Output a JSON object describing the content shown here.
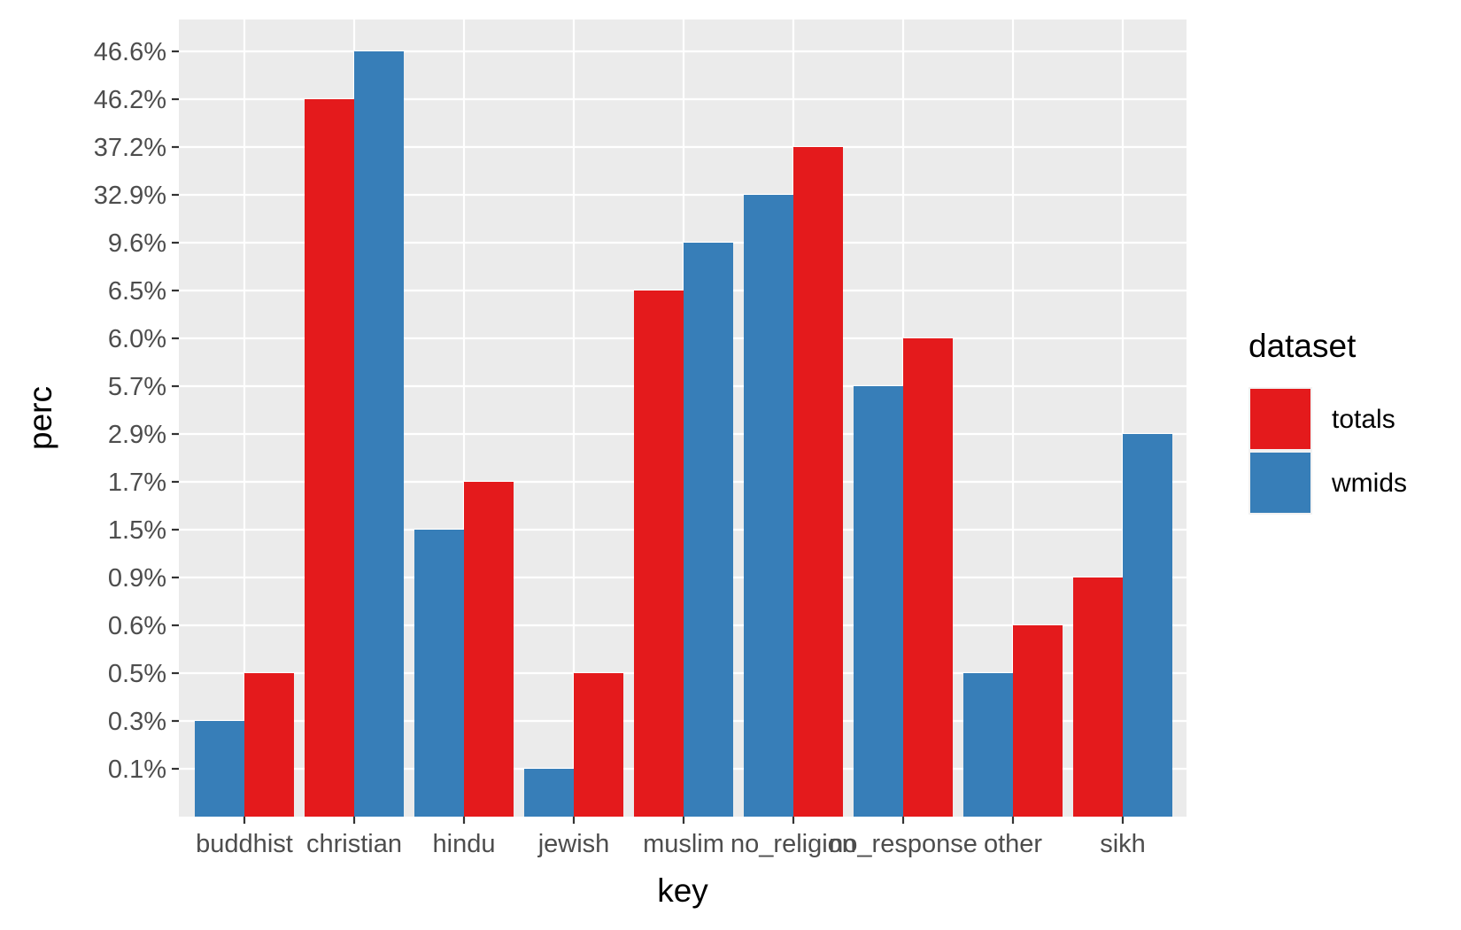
{
  "chart_data": {
    "type": "bar",
    "xlabel": "key",
    "ylabel": "perc",
    "categories": [
      "buddhist",
      "christian",
      "hindu",
      "jewish",
      "muslim",
      "no_religion",
      "no_response",
      "other",
      "sikh"
    ],
    "y_ticks": [
      "0.1%",
      "0.3%",
      "0.5%",
      "0.6%",
      "0.9%",
      "1.5%",
      "1.7%",
      "2.9%",
      "5.7%",
      "6.0%",
      "6.5%",
      "9.6%",
      "32.9%",
      "37.2%",
      "46.2%",
      "46.6%"
    ],
    "y_scale": "discrete",
    "grid": true,
    "legend": {
      "title": "dataset",
      "position": "right",
      "entries": [
        "totals",
        "wmids"
      ]
    },
    "series": [
      {
        "name": "totals",
        "color": "#E41A1C",
        "values": [
          "0.5%",
          "46.2%",
          "1.7%",
          "0.5%",
          "6.5%",
          "37.2%",
          "6.0%",
          "0.6%",
          "0.9%"
        ]
      },
      {
        "name": "wmids",
        "color": "#377EB8",
        "values": [
          "0.3%",
          "46.6%",
          "1.5%",
          "0.1%",
          "9.6%",
          "32.9%",
          "5.7%",
          "0.5%",
          "2.9%"
        ]
      }
    ],
    "panel_color": "#EBEBEB",
    "grid_color": "#FFFFFF"
  }
}
